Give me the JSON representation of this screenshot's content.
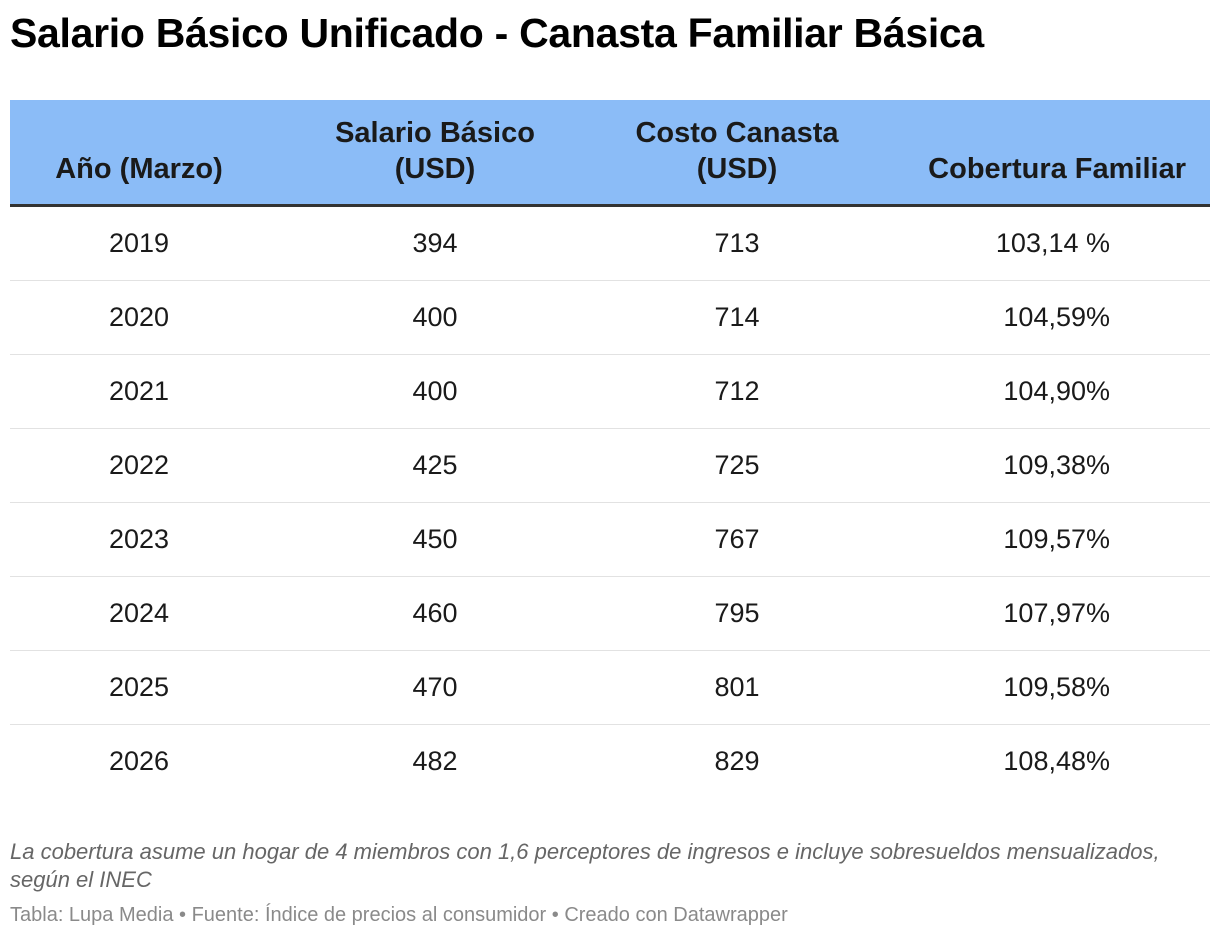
{
  "title": "Salario Básico Unificado - Canasta Familiar Básica",
  "chart_data": {
    "type": "table",
    "title": "Salario Básico Unificado - Canasta Familiar Básica",
    "columns": [
      {
        "line1": "Año (Marzo)",
        "line2": ""
      },
      {
        "line1": "Salario Básico",
        "line2": "(USD)"
      },
      {
        "line1": "Costo Canasta",
        "line2": "(USD)"
      },
      {
        "line1": "Cobertura Familiar",
        "line2": ""
      }
    ],
    "rows": [
      [
        "2019",
        "394",
        "713",
        "103,14 %"
      ],
      [
        "2020",
        "400",
        "714",
        "104,59%"
      ],
      [
        "2021",
        "400",
        "712",
        "104,90%"
      ],
      [
        "2022",
        "425",
        "725",
        "109,38%"
      ],
      [
        "2023",
        "450",
        "767",
        "109,57%"
      ],
      [
        "2024",
        "460",
        "795",
        "107,97%"
      ],
      [
        "2025",
        "470",
        "801",
        "109,58%"
      ],
      [
        "2026",
        "482",
        "829",
        "108,48%"
      ]
    ]
  },
  "note": "La cobertura asume un hogar de 4 miembros con 1,6 perceptores de ingresos e incluye sobresueldos mensualizados, según el INEC",
  "source": "Tabla: Lupa Media • Fuente: Índice de precios al consumidor • Creado con Datawrapper",
  "colors": {
    "header_background": "#8bbcf7",
    "header_rule": "#333333",
    "row_divider": "#e2e2e2"
  }
}
